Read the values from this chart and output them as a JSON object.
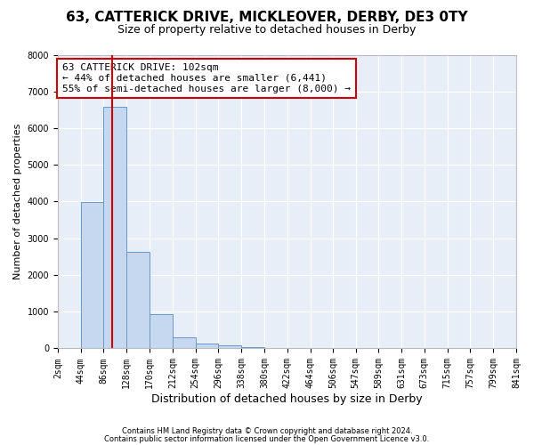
{
  "title1": "63, CATTERICK DRIVE, MICKLEOVER, DERBY, DE3 0TY",
  "title2": "Size of property relative to detached houses in Derby",
  "xlabel": "Distribution of detached houses by size in Derby",
  "ylabel": "Number of detached properties",
  "bin_edges": [
    2,
    44,
    86,
    128,
    170,
    212,
    254,
    296,
    338,
    380,
    422,
    464,
    506,
    547,
    589,
    631,
    673,
    715,
    757,
    799,
    841
  ],
  "bar_heights": [
    10,
    3980,
    6580,
    2620,
    940,
    310,
    140,
    80,
    30,
    15,
    5,
    3,
    2,
    2,
    1,
    1,
    1,
    0,
    0,
    0
  ],
  "bar_color": "#c5d8f0",
  "bar_edgecolor": "#6699cc",
  "property_size": 102,
  "vline_color": "#cc0000",
  "annotation_text": "63 CATTERICK DRIVE: 102sqm\n← 44% of detached houses are smaller (6,441)\n55% of semi-detached houses are larger (8,000) →",
  "annotation_box_color": "#ffffff",
  "annotation_box_edgecolor": "#cc0000",
  "ylim": [
    0,
    8000
  ],
  "yticks": [
    0,
    1000,
    2000,
    3000,
    4000,
    5000,
    6000,
    7000,
    8000
  ],
  "footer1": "Contains HM Land Registry data © Crown copyright and database right 2024.",
  "footer2": "Contains public sector information licensed under the Open Government Licence v3.0.",
  "bg_color": "#ffffff",
  "plot_bg_color": "#e8eef8",
  "title1_fontsize": 11,
  "title2_fontsize": 9,
  "ylabel_fontsize": 8,
  "xlabel_fontsize": 9,
  "tick_fontsize": 7,
  "footer_fontsize": 6,
  "annot_fontsize": 8
}
